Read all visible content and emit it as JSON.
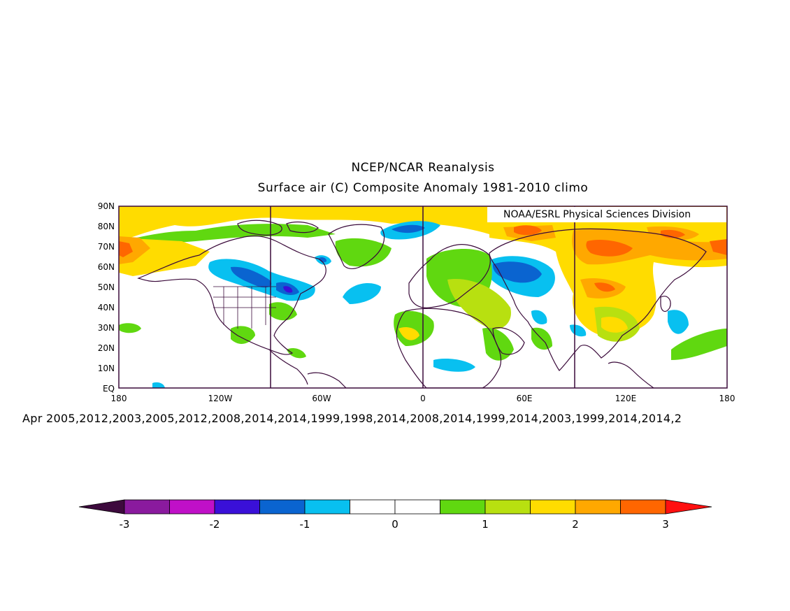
{
  "header": {
    "title": "NCEP/NCAR Reanalysis",
    "subtitle": "Surface air (C) Composite Anomaly 1981-2010 climo"
  },
  "map": {
    "credit": "NOAA/ESRL Physical Sciences Division",
    "lat_labels": [
      "90N",
      "80N",
      "70N",
      "60N",
      "50N",
      "40N",
      "30N",
      "20N",
      "10N",
      "EQ"
    ],
    "lon_labels": [
      "180",
      "120W",
      "60W",
      "0",
      "60E",
      "120E",
      "180"
    ],
    "lon_range": [
      -180,
      180
    ],
    "lat_range": [
      0,
      90
    ],
    "coastline_color": "#3a0a3a"
  },
  "footer": {
    "years_label": "Apr 2005,2012,2003,2005,2012,2008,2014,2014,1999,1998,2014,2008,2014,1999,2014,2003,1999,2014,2014,2"
  },
  "colorbar": {
    "colors": [
      "#3d0a3d",
      "#8a1a9e",
      "#c010c8",
      "#3a10d8",
      "#0a64d0",
      "#08c0f0",
      "#ffffff",
      "#ffffff",
      "#60d810",
      "#b8e010",
      "#ffdc00",
      "#ffa800",
      "#ff6600",
      "#ff1010"
    ],
    "tick_labels": [
      "-3",
      "-2",
      "-1",
      "0",
      "1",
      "2",
      "3"
    ]
  }
}
